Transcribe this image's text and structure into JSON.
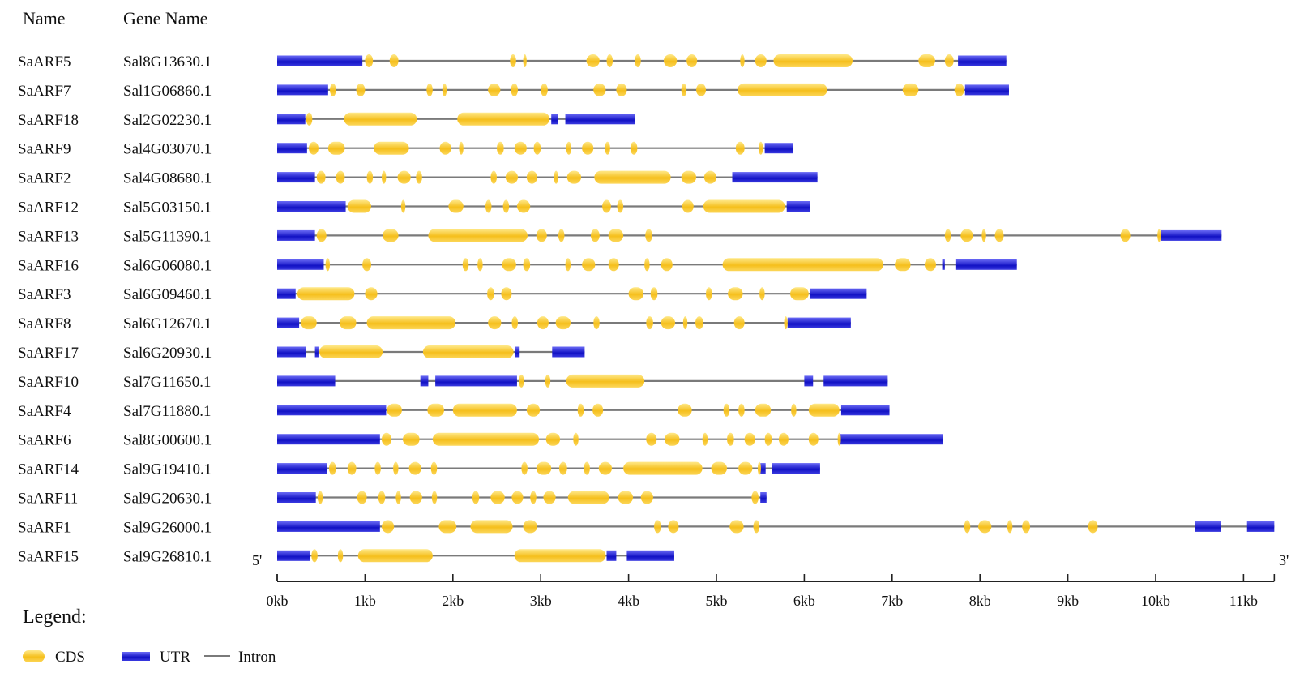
{
  "headers": {
    "name": "Name",
    "gene": "Gene Name"
  },
  "axis": {
    "start_label": "5'",
    "end_label": "3'",
    "ticks": [
      "0kb",
      "1kb",
      "2kb",
      "3kb",
      "4kb",
      "5kb",
      "6kb",
      "7kb",
      "8kb",
      "9kb",
      "10kb",
      "11kb"
    ],
    "max_kb": 11.35
  },
  "legend": {
    "title": "Legend:",
    "cds_label": "CDS",
    "utr_label": "UTR",
    "intron_label": "Intron"
  },
  "colors": {
    "cds_light": "#ffe98a",
    "cds_dark": "#f5bf1c",
    "utr_light": "#6a6af5",
    "utr_dark": "#1212c4",
    "intron": "#7a7a7a",
    "axis": "#222222"
  },
  "chart_data": {
    "type": "gene-structure",
    "genes": [
      {
        "name": "SaARF5",
        "gene": "Sal8G13630.1",
        "length": 8.3,
        "utr": [
          [
            0,
            0.97
          ],
          [
            7.75,
            8.3
          ]
        ],
        "cds": [
          [
            1.0,
            1.09
          ],
          [
            1.28,
            1.38
          ],
          [
            2.65,
            2.72
          ],
          [
            2.8,
            2.84
          ],
          [
            3.52,
            3.67
          ],
          [
            3.75,
            3.82
          ],
          [
            4.07,
            4.14
          ],
          [
            4.4,
            4.55
          ],
          [
            4.66,
            4.78
          ],
          [
            5.27,
            5.32
          ],
          [
            5.44,
            5.57
          ],
          [
            5.65,
            6.55
          ],
          [
            7.3,
            7.49
          ],
          [
            7.6,
            7.7
          ]
        ]
      },
      {
        "name": "SaARF7",
        "gene": "Sal1G06860.1",
        "length": 8.33,
        "utr": [
          [
            0,
            0.58
          ],
          [
            7.83,
            8.33
          ]
        ],
        "cds": [
          [
            0.6,
            0.67
          ],
          [
            0.9,
            1.0
          ],
          [
            1.7,
            1.77
          ],
          [
            1.88,
            1.93
          ],
          [
            2.4,
            2.54
          ],
          [
            2.66,
            2.74
          ],
          [
            3.0,
            3.08
          ],
          [
            3.6,
            3.74
          ],
          [
            3.86,
            3.98
          ],
          [
            4.6,
            4.66
          ],
          [
            4.77,
            4.88
          ],
          [
            5.24,
            6.26
          ],
          [
            7.12,
            7.3
          ],
          [
            7.71,
            7.82
          ]
        ]
      },
      {
        "name": "SaARF18",
        "gene": "Sal2G02230.1",
        "length": 4.07,
        "utr": [
          [
            0,
            0.32
          ],
          [
            3.12,
            3.2
          ],
          [
            3.28,
            4.07
          ]
        ],
        "cds": [
          [
            0.33,
            0.4
          ],
          [
            0.76,
            1.59
          ],
          [
            2.05,
            3.1
          ]
        ]
      },
      {
        "name": "SaARF9",
        "gene": "Sal4G03070.1",
        "length": 5.87,
        "utr": [
          [
            0,
            0.34
          ],
          [
            5.55,
            5.87
          ]
        ],
        "cds": [
          [
            0.36,
            0.47
          ],
          [
            0.58,
            0.77
          ],
          [
            1.1,
            1.5
          ],
          [
            1.85,
            1.98
          ],
          [
            2.07,
            2.12
          ],
          [
            2.5,
            2.58
          ],
          [
            2.7,
            2.84
          ],
          [
            2.92,
            3.0
          ],
          [
            3.29,
            3.35
          ],
          [
            3.47,
            3.6
          ],
          [
            3.73,
            3.79
          ],
          [
            4.02,
            4.1
          ],
          [
            5.22,
            5.32
          ],
          [
            5.48,
            5.53
          ]
        ]
      },
      {
        "name": "SaARF2",
        "gene": "Sal4G08680.1",
        "length": 6.15,
        "utr": [
          [
            0,
            0.43
          ],
          [
            5.18,
            6.15
          ]
        ],
        "cds": [
          [
            0.45,
            0.55
          ],
          [
            0.67,
            0.77
          ],
          [
            1.02,
            1.09
          ],
          [
            1.19,
            1.24
          ],
          [
            1.37,
            1.52
          ],
          [
            1.58,
            1.65
          ],
          [
            2.43,
            2.5
          ],
          [
            2.6,
            2.74
          ],
          [
            2.84,
            2.96
          ],
          [
            3.15,
            3.2
          ],
          [
            3.3,
            3.46
          ],
          [
            3.61,
            4.48
          ],
          [
            4.6,
            4.77
          ],
          [
            4.86,
            5.0
          ]
        ]
      },
      {
        "name": "SaARF12",
        "gene": "Sal5G03150.1",
        "length": 6.07,
        "utr": [
          [
            0,
            0.78
          ],
          [
            5.8,
            6.07
          ]
        ],
        "cds": [
          [
            0.8,
            1.07
          ],
          [
            1.41,
            1.46
          ],
          [
            1.95,
            2.12
          ],
          [
            2.37,
            2.44
          ],
          [
            2.57,
            2.64
          ],
          [
            2.73,
            2.88
          ],
          [
            3.7,
            3.8
          ],
          [
            3.87,
            3.94
          ],
          [
            4.61,
            4.74
          ],
          [
            4.85,
            5.78
          ]
        ]
      },
      {
        "name": "SaARF13",
        "gene": "Sal5G11390.1",
        "length": 10.75,
        "utr": [
          [
            0,
            0.43
          ],
          [
            10.06,
            10.75
          ]
        ],
        "cds": [
          [
            0.45,
            0.56
          ],
          [
            1.2,
            1.38
          ],
          [
            1.72,
            2.85
          ],
          [
            2.95,
            3.07
          ],
          [
            3.2,
            3.27
          ],
          [
            3.57,
            3.67
          ],
          [
            3.77,
            3.94
          ],
          [
            4.19,
            4.27
          ],
          [
            7.6,
            7.67
          ],
          [
            7.78,
            7.92
          ],
          [
            8.02,
            8.07
          ],
          [
            8.17,
            8.27
          ],
          [
            9.6,
            9.71
          ],
          [
            10.02,
            10.06
          ]
        ]
      },
      {
        "name": "SaARF16",
        "gene": "Sal6G06080.1",
        "length": 8.42,
        "utr": [
          [
            0,
            0.53
          ],
          [
            7.57,
            7.6
          ],
          [
            7.72,
            8.42
          ]
        ],
        "cds": [
          [
            0.55,
            0.6
          ],
          [
            0.97,
            1.07
          ],
          [
            2.11,
            2.18
          ],
          [
            2.28,
            2.34
          ],
          [
            2.56,
            2.72
          ],
          [
            2.8,
            2.88
          ],
          [
            3.28,
            3.34
          ],
          [
            3.47,
            3.62
          ],
          [
            3.77,
            3.89
          ],
          [
            4.18,
            4.24
          ],
          [
            4.37,
            4.5
          ],
          [
            5.07,
            6.9
          ],
          [
            7.03,
            7.21
          ],
          [
            7.37,
            7.5
          ]
        ]
      },
      {
        "name": "SaARF3",
        "gene": "Sal6G09460.1",
        "length": 6.71,
        "utr": [
          [
            0,
            0.21
          ],
          [
            6.07,
            6.71
          ]
        ],
        "cds": [
          [
            0.23,
            0.88
          ],
          [
            1.0,
            1.14
          ],
          [
            2.39,
            2.47
          ],
          [
            2.55,
            2.67
          ],
          [
            4.0,
            4.17
          ],
          [
            4.25,
            4.33
          ],
          [
            4.88,
            4.95
          ],
          [
            5.13,
            5.3
          ],
          [
            5.49,
            5.55
          ],
          [
            5.84,
            6.05
          ]
        ]
      },
      {
        "name": "SaARF8",
        "gene": "Sal6G12670.1",
        "length": 6.53,
        "utr": [
          [
            0,
            0.25
          ],
          [
            5.81,
            6.53
          ]
        ],
        "cds": [
          [
            0.27,
            0.45
          ],
          [
            0.71,
            0.9
          ],
          [
            1.02,
            2.03
          ],
          [
            2.4,
            2.55
          ],
          [
            2.67,
            2.74
          ],
          [
            2.96,
            3.09
          ],
          [
            3.17,
            3.34
          ],
          [
            3.6,
            3.67
          ],
          [
            4.2,
            4.28
          ],
          [
            4.37,
            4.53
          ],
          [
            4.62,
            4.67
          ],
          [
            4.76,
            4.85
          ],
          [
            5.2,
            5.32
          ],
          [
            5.77,
            5.81
          ]
        ]
      },
      {
        "name": "SaARF17",
        "gene": "Sal6G20930.1",
        "length": 3.5,
        "utr": [
          [
            0,
            0.33
          ],
          [
            0.43,
            0.47
          ],
          [
            2.71,
            2.76
          ],
          [
            3.13,
            3.5
          ]
        ],
        "cds": [
          [
            0.48,
            1.2
          ],
          [
            1.66,
            2.69
          ]
        ]
      },
      {
        "name": "SaARF10",
        "gene": "Sal7G11650.1",
        "length": 6.95,
        "utr": [
          [
            0,
            0.66
          ],
          [
            1.63,
            1.72
          ],
          [
            1.8,
            2.73
          ],
          [
            6.0,
            6.1
          ],
          [
            6.22,
            6.95
          ]
        ],
        "cds": [
          [
            2.75,
            2.81
          ],
          [
            3.05,
            3.11
          ],
          [
            3.29,
            4.18
          ]
        ]
      },
      {
        "name": "SaARF4",
        "gene": "Sal7G11880.1",
        "length": 6.97,
        "utr": [
          [
            0,
            1.24
          ],
          [
            6.42,
            6.97
          ]
        ],
        "cds": [
          [
            1.25,
            1.42
          ],
          [
            1.71,
            1.9
          ],
          [
            2.0,
            2.73
          ],
          [
            2.84,
            2.99
          ],
          [
            3.42,
            3.49
          ],
          [
            3.59,
            3.71
          ],
          [
            4.56,
            4.72
          ],
          [
            5.08,
            5.15
          ],
          [
            5.25,
            5.32
          ],
          [
            5.44,
            5.62
          ],
          [
            5.85,
            5.91
          ],
          [
            6.05,
            6.4
          ]
        ]
      },
      {
        "name": "SaARF6",
        "gene": "Sal8G00600.1",
        "length": 7.58,
        "utr": [
          [
            0,
            1.17
          ],
          [
            6.41,
            7.58
          ]
        ],
        "cds": [
          [
            1.19,
            1.3
          ],
          [
            1.43,
            1.62
          ],
          [
            1.77,
            2.98
          ],
          [
            3.06,
            3.22
          ],
          [
            3.37,
            3.43
          ],
          [
            4.2,
            4.32
          ],
          [
            4.41,
            4.58
          ],
          [
            4.84,
            4.9
          ],
          [
            5.12,
            5.2
          ],
          [
            5.32,
            5.44
          ],
          [
            5.55,
            5.63
          ],
          [
            5.71,
            5.82
          ],
          [
            6.05,
            6.16
          ],
          [
            6.38,
            6.41
          ]
        ]
      },
      {
        "name": "SaARF14",
        "gene": "Sal9G19410.1",
        "length": 6.18,
        "utr": [
          [
            0,
            0.57
          ],
          [
            5.5,
            5.56
          ],
          [
            5.63,
            6.18
          ]
        ],
        "cds": [
          [
            0.59,
            0.67
          ],
          [
            0.8,
            0.9
          ],
          [
            1.11,
            1.18
          ],
          [
            1.32,
            1.38
          ],
          [
            1.5,
            1.64
          ],
          [
            1.75,
            1.82
          ],
          [
            2.78,
            2.85
          ],
          [
            2.95,
            3.12
          ],
          [
            3.21,
            3.3
          ],
          [
            3.49,
            3.56
          ],
          [
            3.66,
            3.81
          ],
          [
            3.94,
            4.84
          ],
          [
            4.94,
            5.12
          ],
          [
            5.25,
            5.41
          ],
          [
            5.47,
            5.5
          ]
        ]
      },
      {
        "name": "SaARF11",
        "gene": "Sal9G20630.1",
        "length": 5.57,
        "utr": [
          [
            0,
            0.44
          ],
          [
            5.5,
            5.57
          ]
        ],
        "cds": [
          [
            0.46,
            0.52
          ],
          [
            0.91,
            1.02
          ],
          [
            1.15,
            1.23
          ],
          [
            1.35,
            1.41
          ],
          [
            1.51,
            1.65
          ],
          [
            1.76,
            1.82
          ],
          [
            2.22,
            2.3
          ],
          [
            2.43,
            2.59
          ],
          [
            2.67,
            2.8
          ],
          [
            2.88,
            2.95
          ],
          [
            3.03,
            3.17
          ],
          [
            3.31,
            3.78
          ],
          [
            3.88,
            4.05
          ],
          [
            4.14,
            4.28
          ],
          [
            5.4,
            5.48
          ]
        ]
      },
      {
        "name": "SaARF1",
        "gene": "Sal9G26000.1",
        "length": 11.35,
        "utr": [
          [
            0,
            1.17
          ],
          [
            10.45,
            10.74
          ],
          [
            11.04,
            11.35
          ]
        ],
        "cds": [
          [
            1.19,
            1.33
          ],
          [
            1.84,
            2.04
          ],
          [
            2.2,
            2.68
          ],
          [
            2.8,
            2.96
          ],
          [
            4.29,
            4.37
          ],
          [
            4.45,
            4.57
          ],
          [
            5.15,
            5.31
          ],
          [
            5.42,
            5.49
          ],
          [
            7.82,
            7.89
          ],
          [
            7.98,
            8.13
          ],
          [
            8.31,
            8.37
          ],
          [
            8.48,
            8.57
          ],
          [
            9.23,
            9.34
          ]
        ]
      },
      {
        "name": "SaARF15",
        "gene": "Sal9G26810.1",
        "length": 4.52,
        "utr": [
          [
            0,
            0.37
          ],
          [
            3.75,
            3.86
          ],
          [
            3.98,
            4.52
          ]
        ],
        "cds": [
          [
            0.39,
            0.46
          ],
          [
            0.69,
            0.75
          ],
          [
            0.92,
            1.77
          ],
          [
            2.7,
            3.74
          ]
        ]
      }
    ]
  }
}
